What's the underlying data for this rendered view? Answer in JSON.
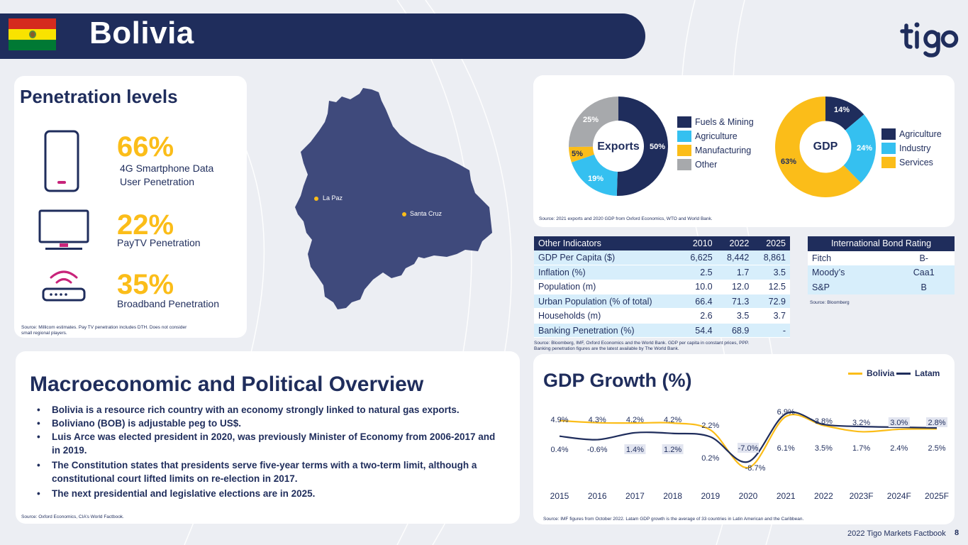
{
  "header": {
    "title": "Bolivia"
  },
  "colors": {
    "navy": "#1f2d5c",
    "light_blue": "#35c0f0",
    "yellow": "#fbbd19",
    "grey": "#a7a9ac",
    "magenta": "#c8237a",
    "row_blue": "#d7eefb"
  },
  "penetration": {
    "title": "Penetration levels",
    "items": [
      {
        "icon": "smartphone-icon",
        "value": "66%",
        "label_line1": "4G Smartphone Data",
        "label_line2": "User Penetration"
      },
      {
        "icon": "tv-icon",
        "value": "22%",
        "label_line1": "PayTV Penetration",
        "label_line2": ""
      },
      {
        "icon": "router-icon",
        "value": "35%",
        "label_line1": "Broadband Penetration",
        "label_line2": ""
      }
    ],
    "source_line1": "Source: Millicom estimates. Pay TV penetration includes DTH.   Does not consider",
    "source_line2": "small regional players."
  },
  "map": {
    "cities": [
      "La Paz",
      "Santa Cruz"
    ]
  },
  "exports": {
    "center_label": "Exports",
    "slices": [
      {
        "name": "Fuels & Mining",
        "value": 50,
        "label": "50%",
        "color": "#1f2d5c"
      },
      {
        "name": "Agriculture",
        "value": 19,
        "label": "19%",
        "color": "#35c0f0"
      },
      {
        "name": "Manufacturing",
        "value": 5,
        "label": "5%",
        "color": "#fbbd19"
      },
      {
        "name": "Other",
        "value": 25,
        "label": "25%",
        "color": "#a7a9ac"
      }
    ]
  },
  "gdp_comp": {
    "center_label": "GDP",
    "slices": [
      {
        "name": "Agriculture",
        "value": 14,
        "label": "14%",
        "color": "#1f2d5c"
      },
      {
        "name": "Industry",
        "value": 24,
        "label": "24%",
        "color": "#35c0f0"
      },
      {
        "name": "Services",
        "value": 63,
        "label": "63%",
        "color": "#fbbd19"
      }
    ]
  },
  "donut_source": "Source: 2021 exports and 2020 GDP from Oxford Economics, WTO and World Bank.",
  "indicators": {
    "headers": [
      "Other Indicators",
      "2010",
      "2022",
      "2025"
    ],
    "rows": [
      [
        "GDP Per Capita ($)",
        "6,625",
        "8,442",
        "8,861"
      ],
      [
        "Inflation (%)",
        "2.5",
        "1.7",
        "3.5"
      ],
      [
        "Population (m)",
        "10.0",
        "12.0",
        "12.5"
      ],
      [
        "Urban Population (% of total)",
        "66.4",
        "71.3",
        "72.9"
      ],
      [
        "Households (m)",
        "2.6",
        "3.5",
        "3.7"
      ],
      [
        "Banking Penetration (%)",
        "54.4",
        "68.9",
        "-"
      ]
    ],
    "source_line1": "Source: Bloomberg, IMF, Oxford Economics and the World Bank. GDP per capita in constant prices, PPP.",
    "source_line2": "Banking penetration figures are the latest available by The World Bank."
  },
  "bond": {
    "header": "International Bond Rating",
    "rows": [
      [
        "Fitch",
        "B-"
      ],
      [
        "Moody’s",
        "Caa1"
      ],
      [
        "S&P",
        "B"
      ]
    ],
    "source": "Source: Bloomberg"
  },
  "macro": {
    "title": "Macroeconomic and Political Overview",
    "bullets": [
      "Bolivia is a resource rich country with an economy strongly linked to natural gas exports.",
      "Boliviano (BOB) is adjustable peg to US$.",
      "Luis Arce was elected president in 2020, was previously Minister of Economy from 2006-2017 and in 2019.",
      "The Constitution states that presidents serve five-year terms with a two-term limit, although a constitutional court lifted limits on re-election in 2017.",
      "The next presidential and legislative elections are in 2025."
    ],
    "source": "Source: Oxford Economics, CIA’s World Factbook."
  },
  "chart_data": {
    "type": "line",
    "title": "GDP Growth (%)",
    "x": [
      "2015",
      "2016",
      "2017",
      "2018",
      "2019",
      "2020",
      "2021",
      "2022",
      "2023F",
      "2024F",
      "2025F"
    ],
    "series": [
      {
        "name": "Bolivia",
        "color": "#fbbd19",
        "values": [
          4.9,
          4.3,
          4.2,
          4.2,
          2.2,
          -8.7,
          6.1,
          3.5,
          1.7,
          2.4,
          2.5
        ],
        "labels": [
          "4.9%",
          "4.3%",
          "4.2%",
          "4.2%",
          "2.2%",
          "-8.7%",
          "6.1%",
          "3.5%",
          "1.7%",
          "2.4%",
          "2.5%"
        ]
      },
      {
        "name": "Latam",
        "color": "#1f2d5c",
        "values": [
          0.4,
          -0.6,
          1.4,
          1.2,
          0.2,
          -7.0,
          6.9,
          3.8,
          3.2,
          3.0,
          2.8
        ],
        "labels": [
          "0.4%",
          "-0.6%",
          "1.4%",
          "1.2%",
          "0.2%",
          "-7.0%",
          "6.9%",
          "3.8%",
          "3.2%",
          "3.0%",
          "2.8%"
        ]
      }
    ],
    "source": "Source: IMF figures from October 2022. Latam GDP growth is the average of 33 countries in Latin American and the Caribbean."
  },
  "footer": {
    "text": "2022 Tigo Markets Factbook",
    "page": "8"
  }
}
